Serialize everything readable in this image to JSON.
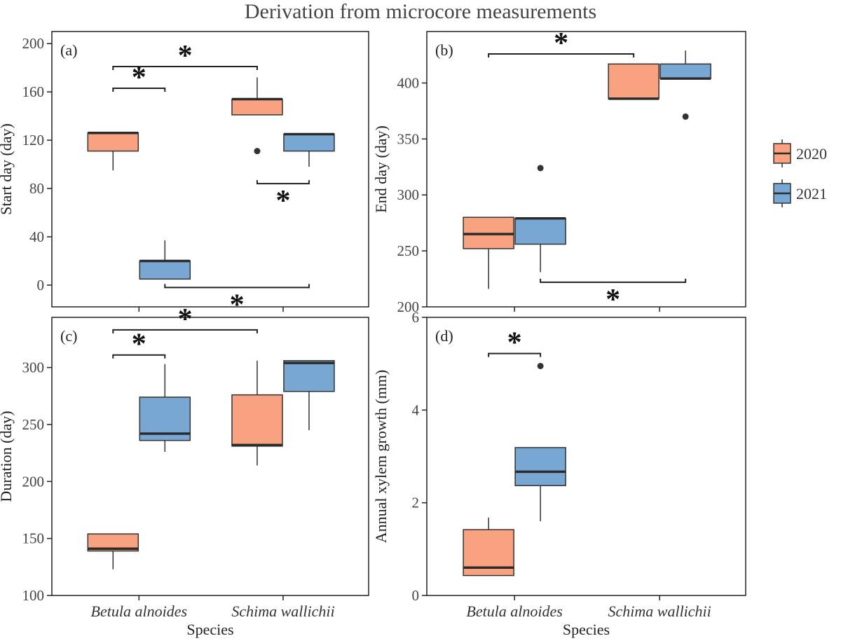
{
  "figure": {
    "title": "Derivation from microcore measurements",
    "legend": [
      {
        "label": "2020",
        "color": "#f9a27f"
      },
      {
        "label": "2021",
        "color": "#78a7d3"
      }
    ],
    "legend_placement": "right"
  },
  "chart_data": [
    {
      "type": "box",
      "panel_label": "(a)",
      "ylabel": "Start day (day)",
      "xlabel": "",
      "categories": [
        "Betula alnoides",
        "Schima wallichii"
      ],
      "ylim": [
        -18,
        210
      ],
      "yticks": [
        0,
        40,
        80,
        120,
        160,
        200
      ],
      "series": [
        {
          "name": "2020",
          "color": "#f9a27f",
          "boxes": [
            {
              "min": 95,
              "q1": 111,
              "median": 126,
              "q3": 126,
              "max": 126,
              "outliers": []
            },
            {
              "min": 141,
              "q1": 141,
              "median": 154,
              "q3": 154,
              "max": 172,
              "outliers": [
                111
              ]
            }
          ]
        },
        {
          "name": "2021",
          "color": "#78a7d3",
          "boxes": [
            {
              "min": 5,
              "q1": 5,
              "median": 20,
              "q3": 20,
              "max": 37,
              "outliers": []
            },
            {
              "min": 98,
              "q1": 111,
              "median": 125,
              "q3": 125,
              "max": 125,
              "outliers": []
            }
          ]
        }
      ],
      "significance": [
        {
          "from": [
            0,
            "2020"
          ],
          "to": [
            1,
            "2020"
          ],
          "y": 181,
          "label": "*",
          "above": true
        },
        {
          "from": [
            0,
            "2020"
          ],
          "to": [
            0,
            "2021"
          ],
          "y": 163,
          "label": "*",
          "above": true
        },
        {
          "from": [
            1,
            "2020"
          ],
          "to": [
            1,
            "2021"
          ],
          "y": 84,
          "label": "*",
          "above": false
        },
        {
          "from": [
            0,
            "2021"
          ],
          "to": [
            1,
            "2021"
          ],
          "y": -2,
          "label": "*",
          "above": false
        }
      ]
    },
    {
      "type": "box",
      "panel_label": "(b)",
      "ylabel": "End day (day)",
      "xlabel": "",
      "categories": [
        "Betula alnoides",
        "Schima wallichii"
      ],
      "ylim": [
        200,
        446
      ],
      "yticks": [
        200,
        250,
        300,
        350,
        400
      ],
      "series": [
        {
          "name": "2020",
          "color": "#f9a27f",
          "boxes": [
            {
              "min": 216,
              "q1": 252,
              "median": 265,
              "q3": 280,
              "max": 280,
              "outliers": []
            },
            {
              "min": 386,
              "q1": 386,
              "median": 386,
              "q3": 417,
              "max": 417,
              "outliers": []
            }
          ]
        },
        {
          "name": "2021",
          "color": "#78a7d3",
          "boxes": [
            {
              "min": 231,
              "q1": 256,
              "median": 279,
              "q3": 279,
              "max": 279,
              "outliers": [
                324
              ]
            },
            {
              "min": 404,
              "q1": 404,
              "median": 404,
              "q3": 417,
              "max": 429,
              "outliers": [
                370
              ]
            }
          ]
        }
      ],
      "significance": [
        {
          "from": [
            0,
            "2020"
          ],
          "to": [
            1,
            "2020"
          ],
          "y": 426,
          "label": "*",
          "above": true
        },
        {
          "from": [
            0,
            "2021"
          ],
          "to": [
            1,
            "2021"
          ],
          "y": 222,
          "label": "*",
          "above": false
        }
      ]
    },
    {
      "type": "box",
      "panel_label": "(c)",
      "ylabel": "Duration (day)",
      "xlabel": "Species",
      "categories": [
        "Betula alnoides",
        "Schima wallichii"
      ],
      "ylim": [
        100,
        344
      ],
      "yticks": [
        100,
        150,
        200,
        250,
        300
      ],
      "series": [
        {
          "name": "2020",
          "color": "#f9a27f",
          "boxes": [
            {
              "min": 123,
              "q1": 139,
              "median": 141,
              "q3": 154,
              "max": 154,
              "outliers": []
            },
            {
              "min": 214,
              "q1": 231,
              "median": 232,
              "q3": 276,
              "max": 306,
              "outliers": []
            }
          ]
        },
        {
          "name": "2021",
          "color": "#78a7d3",
          "boxes": [
            {
              "min": 226,
              "q1": 236,
              "median": 242,
              "q3": 274,
              "max": 303,
              "outliers": []
            },
            {
              "min": 245,
              "q1": 279,
              "median": 304,
              "q3": 306,
              "max": 306,
              "outliers": []
            }
          ]
        }
      ],
      "significance": [
        {
          "from": [
            0,
            "2020"
          ],
          "to": [
            1,
            "2020"
          ],
          "y": 333,
          "label": "*",
          "above": true
        },
        {
          "from": [
            0,
            "2020"
          ],
          "to": [
            0,
            "2021"
          ],
          "y": 311,
          "label": "*",
          "above": true
        }
      ]
    },
    {
      "type": "box",
      "panel_label": "(d)",
      "ylabel": "Annual xylem growth (mm)",
      "xlabel": "Species",
      "categories": [
        "Betula alnoides",
        "Schima wallichii"
      ],
      "ylim": [
        0,
        6
      ],
      "yticks": [
        0,
        2,
        4,
        6
      ],
      "series": [
        {
          "name": "2020",
          "color": "#f9a27f",
          "boxes": [
            {
              "min": 0.43,
              "q1": 0.43,
              "median": 0.6,
              "q3": 1.42,
              "max": 1.68,
              "outliers": []
            },
            null
          ]
        },
        {
          "name": "2021",
          "color": "#78a7d3",
          "boxes": [
            {
              "min": 1.6,
              "q1": 2.37,
              "median": 2.67,
              "q3": 3.19,
              "max": 3.19,
              "outliers": [
                4.95
              ]
            },
            null
          ]
        }
      ],
      "significance": [
        {
          "from": [
            0,
            "2020"
          ],
          "to": [
            0,
            "2021"
          ],
          "y": 5.22,
          "label": "*",
          "above": true
        }
      ]
    }
  ]
}
